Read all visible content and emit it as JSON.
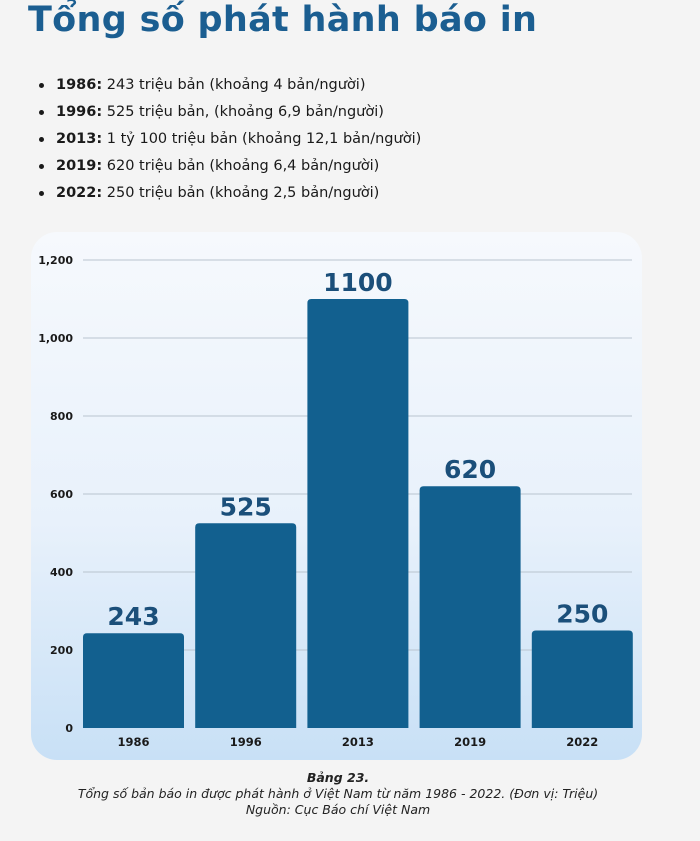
{
  "title": "Tổng số phát hành báo in",
  "facts": [
    {
      "year": "1986:",
      "text": " 243 triệu bản (khoảng 4 bản/người)"
    },
    {
      "year": "1996:",
      "text": " 525 triệu bản, (khoảng 6,9 bản/người)"
    },
    {
      "year": "2013:",
      "text": " 1 tỷ 100 triệu bản (khoảng 12,1 bản/người)"
    },
    {
      "year": "2019:",
      "text": " 620 triệu bản (khoảng 6,4 bản/người)"
    },
    {
      "year": "2022:",
      "text": " 250 triệu bản (khoảng 2,5 bản/người)"
    }
  ],
  "chart_data": {
    "type": "bar",
    "categories": [
      "1986",
      "1996",
      "2013",
      "2019",
      "2022"
    ],
    "values": [
      243,
      525,
      1100,
      620,
      250
    ],
    "data_labels": [
      "243",
      "525",
      "1100",
      "620",
      "250"
    ],
    "y_ticks": [
      0,
      200,
      400,
      600,
      800,
      1000,
      1200
    ],
    "y_tick_labels": [
      "0",
      "200",
      "400",
      "600",
      "800",
      "1,000",
      "1,200"
    ],
    "ylim": [
      0,
      1200
    ],
    "grid": true,
    "title": "",
    "xlabel": "",
    "ylabel": "",
    "bar_color": "#12608f",
    "label_color": "#1b4f7a",
    "grid_color": "#b9c4cf"
  },
  "caption": {
    "label": "Bảng 23.",
    "line1": "Tổng số bản báo in được phát hành ở Việt Nam từ năm 1986 - 2022. (Đơn vị: Triệu)",
    "line2": "Nguồn: Cục Báo chí Việt Nam"
  }
}
